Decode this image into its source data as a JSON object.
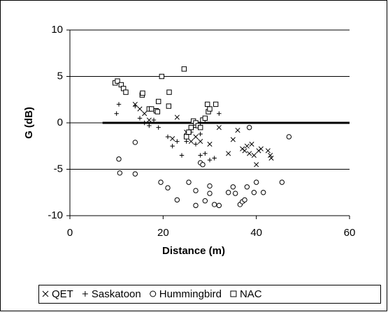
{
  "chart_data": {
    "type": "scatter",
    "xlabel": "Distance (m)",
    "ylabel": "G (dB)",
    "xlim": [
      0,
      60
    ],
    "xticks": [
      0,
      20,
      40,
      60
    ],
    "ylim": [
      -10,
      10
    ],
    "yticks": [
      -10,
      -5,
      0,
      5,
      10
    ],
    "grid": true,
    "legend": "bottom",
    "reference_line": {
      "x": [
        7,
        60
      ],
      "y": [
        0,
        0
      ],
      "color": "#000000"
    },
    "series": [
      {
        "name": "QET",
        "marker": "x",
        "color": "#000000",
        "x": [
          14,
          15,
          16,
          17,
          22,
          23,
          25,
          26,
          27,
          28,
          30,
          32,
          34,
          35,
          36,
          37,
          37.5,
          38,
          38.5,
          39,
          39.5,
          40,
          40.5,
          41,
          42.5,
          43,
          43.2
        ],
        "y": [
          2,
          1.5,
          1,
          0.3,
          -1.7,
          0.6,
          -1,
          -2,
          -1.5,
          -2,
          -2.3,
          -0.5,
          -3.3,
          -1.8,
          -0.8,
          -2.8,
          -3,
          -2.5,
          -3.3,
          -2.3,
          -3.5,
          -4.5,
          -3,
          -2.8,
          -3,
          -3.5,
          -3.8
        ]
      },
      {
        "name": "Saskatoon",
        "marker": "+",
        "color": "#000000",
        "x": [
          10,
          10.5,
          14,
          15,
          16,
          17,
          18,
          19,
          21,
          22,
          23,
          24,
          25,
          26,
          27,
          28,
          29,
          30,
          31,
          32,
          26.5,
          28
        ],
        "y": [
          1,
          2,
          1.8,
          0.5,
          0,
          -0.3,
          0.3,
          -0.5,
          -1.5,
          -2.5,
          -2,
          -3.5,
          -2,
          -1,
          -2.3,
          -3.5,
          -3.3,
          -4,
          -3.8,
          1,
          -0.5,
          -1.2
        ]
      },
      {
        "name": "Hummingbird",
        "marker": "o",
        "color": "#000000",
        "x": [
          10.5,
          10.7,
          14,
          14,
          19.5,
          21,
          23,
          25.5,
          27,
          27,
          28,
          28.5,
          29,
          30,
          30,
          31,
          32,
          34,
          35,
          35.5,
          36.5,
          37,
          37.5,
          38,
          38.5,
          39.5,
          40,
          41.5,
          45.5,
          47
        ],
        "y": [
          -3.9,
          -5.4,
          -2.1,
          -5.5,
          -6.4,
          -7,
          -8.3,
          -6.4,
          -8.9,
          -7.3,
          -4.3,
          -4.5,
          -8.4,
          -6.8,
          -7.6,
          -8.8,
          -8.9,
          -7.5,
          -6.9,
          -7.6,
          -8.8,
          -8.5,
          -8.3,
          -6.9,
          -0.5,
          -7.5,
          -6.4,
          -7.5,
          -6.4,
          -1.5
        ]
      },
      {
        "name": "NAC",
        "marker": "s",
        "color": "#000000",
        "x": [
          9.7,
          10.2,
          11,
          11.5,
          12,
          15.5,
          15.6,
          17,
          17.5,
          18.5,
          18.8,
          19,
          19.7,
          21.3,
          21.2,
          24.5,
          25,
          25.5,
          26,
          26.5,
          27,
          27.5,
          28,
          28.5,
          29,
          29.5,
          29.7,
          30,
          31.3
        ],
        "y": [
          4.3,
          4.5,
          4.1,
          3.7,
          3.3,
          3,
          3.2,
          1.5,
          1.5,
          1.3,
          1.2,
          2.3,
          5,
          3.3,
          1.8,
          5.8,
          -1.5,
          -1,
          -0.5,
          0.2,
          0,
          -0.3,
          -0.5,
          0.3,
          0.5,
          2,
          1.2,
          1.5,
          2
        ]
      }
    ]
  }
}
